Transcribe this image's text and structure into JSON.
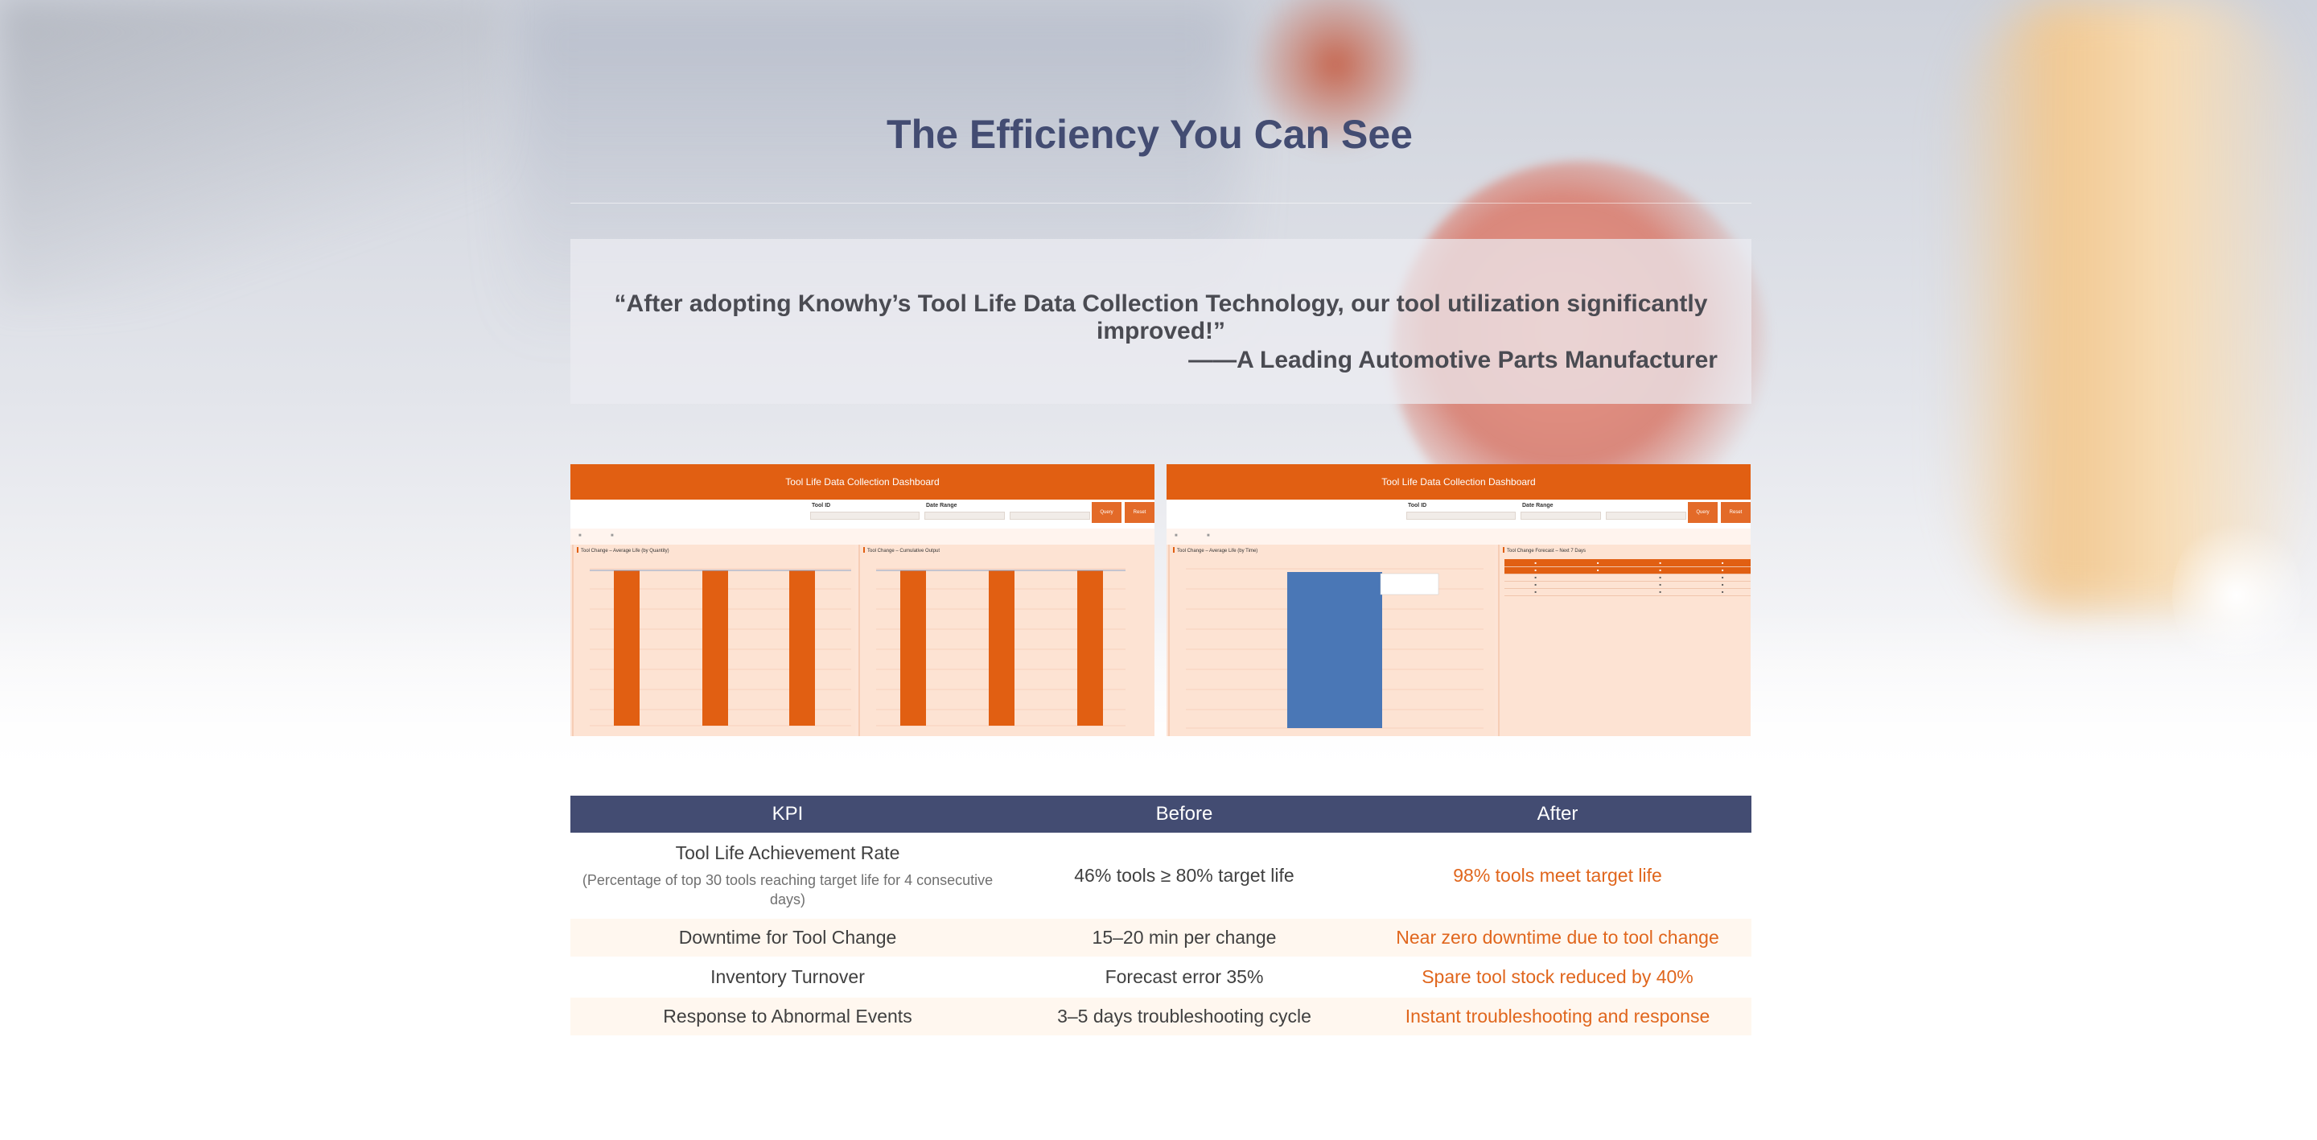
{
  "page": {
    "title": "The Efficiency You Can See"
  },
  "quote": {
    "text": "“After adopting Knowhy’s Tool Life Data Collection Technology, our tool utilization significantly improved!”",
    "author": "——A Leading Automotive Parts Manufacturer"
  },
  "dashboards": [
    {
      "header": "Tool Life Data Collection Dashboard",
      "filters": {
        "tool_id_label": "Tool ID",
        "date_range_label": "Date Range",
        "query_label": "Query",
        "reset_label": "Reset"
      },
      "panels": [
        "Tool Change – Average Life (by Quantity)",
        "Tool Change – Cumulative Output"
      ]
    },
    {
      "header": "Tool Life Data Collection Dashboard",
      "filters": {
        "tool_id_label": "Tool ID",
        "date_range_label": "Date Range",
        "query_label": "Query",
        "reset_label": "Reset"
      },
      "panels": [
        "Tool Change – Average Life (by Time)",
        "Tool Change Forecast – Next 7 Days"
      ]
    }
  ],
  "kpi_table": {
    "headers": [
      "KPI",
      "Before",
      "After"
    ],
    "rows": [
      {
        "kpi": "Tool Life Achievement Rate",
        "kpi_note": "(Percentage of top 30 tools reaching target life for 4 consecutive days)",
        "before": "46% tools ≥ 80% target life",
        "after": "98% tools meet target life"
      },
      {
        "kpi": "Downtime for Tool Change",
        "before": "15–20 min per change",
        "after": "Near zero downtime due to tool change"
      },
      {
        "kpi": "Inventory Turnover",
        "before": "Forecast error 35%",
        "after": "Spare tool stock reduced by 40%"
      },
      {
        "kpi": "Response to Abnormal Events",
        "before": "3–5 days troubleshooting cycle",
        "after": "Instant troubleshooting and response"
      }
    ]
  },
  "colors": {
    "title": "#434c72",
    "accent_orange": "#e15f12",
    "table_header": "#434c72",
    "after_text": "#e0661d",
    "bar_blue": "#4a77b6"
  }
}
